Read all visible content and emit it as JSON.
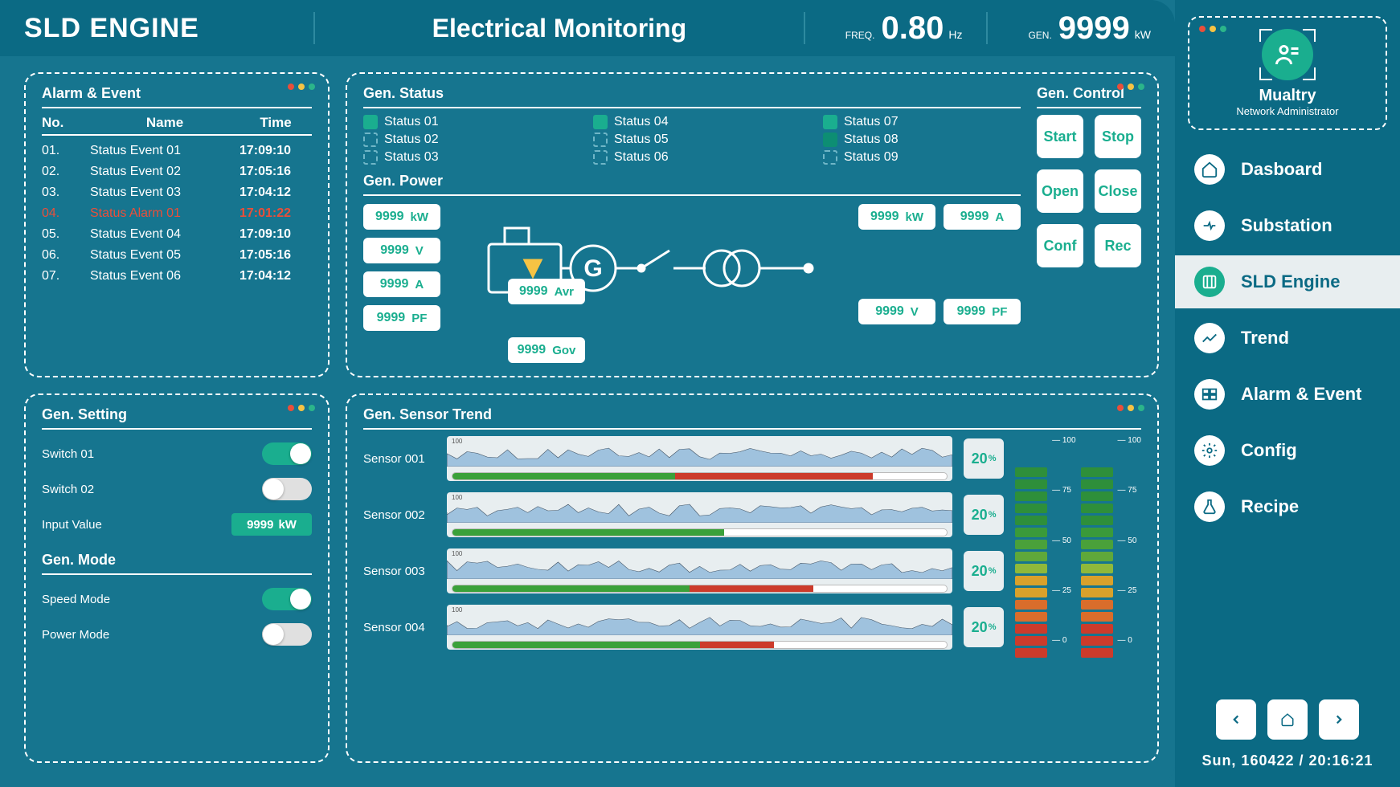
{
  "colors": {
    "bg_main": "#16758f",
    "bg_side": "#0b6a84",
    "accent": "#1aae8f",
    "white": "#ffffff",
    "alarm": "#e94f3a",
    "trend_bg": "#e8eef0",
    "trend_line": "#5b8fbf"
  },
  "header": {
    "brand": "SLD ENGINE",
    "title": "Electrical Monitoring",
    "freq": {
      "label": "FREQ.",
      "value": "0.80",
      "unit": "Hz"
    },
    "gen": {
      "label": "GEN.",
      "value": "9999",
      "unit": "kW"
    }
  },
  "alarm": {
    "title": "Alarm & Event",
    "columns": {
      "no": "No.",
      "name": "Name",
      "time": "Time"
    },
    "rows": [
      {
        "no": "01.",
        "name": "Status Event 01",
        "time": "17:09:10",
        "type": "event"
      },
      {
        "no": "02.",
        "name": "Status Event 02",
        "time": "17:05:16",
        "type": "event"
      },
      {
        "no": "03.",
        "name": "Status Event 03",
        "time": "17:04:12",
        "type": "event"
      },
      {
        "no": "04.",
        "name": "Status Alarm 01",
        "time": "17:01:22",
        "type": "alarm"
      },
      {
        "no": "05.",
        "name": "Status Event 04",
        "time": "17:09:10",
        "type": "event"
      },
      {
        "no": "06.",
        "name": "Status Event 05",
        "time": "17:05:16",
        "type": "event"
      },
      {
        "no": "07.",
        "name": "Status Event 06",
        "time": "17:04:12",
        "type": "event"
      }
    ]
  },
  "gen_status": {
    "title": "Gen. Status",
    "items": [
      {
        "label": "Status 01",
        "state": "on"
      },
      {
        "label": "Status 04",
        "state": "on"
      },
      {
        "label": "Status 07",
        "state": "on"
      },
      {
        "label": "Status 02",
        "state": "off"
      },
      {
        "label": "Status 05",
        "state": "off"
      },
      {
        "label": "Status 08",
        "state": "dim"
      },
      {
        "label": "Status 03",
        "state": "off"
      },
      {
        "label": "Status 06",
        "state": "off"
      },
      {
        "label": "Status 09",
        "state": "off"
      }
    ]
  },
  "gen_power": {
    "title": "Gen. Power",
    "left_boxes": [
      {
        "value": "9999",
        "unit": "kW"
      },
      {
        "value": "9999",
        "unit": "V"
      },
      {
        "value": "9999",
        "unit": "A"
      },
      {
        "value": "9999",
        "unit": "PF"
      }
    ],
    "mid_boxes": [
      {
        "value": "9999",
        "unit": "Avr"
      },
      {
        "value": "9999",
        "unit": "Gov"
      }
    ],
    "right_boxes": [
      {
        "value": "9999",
        "unit": "kW"
      },
      {
        "value": "9999",
        "unit": "A"
      },
      {
        "value": "9999",
        "unit": "V"
      },
      {
        "value": "9999",
        "unit": "PF"
      }
    ]
  },
  "gen_control": {
    "title": "Gen. Control",
    "buttons": [
      "Start",
      "Stop",
      "Open",
      "Close",
      "Conf",
      "Rec"
    ]
  },
  "gen_setting": {
    "title": "Gen. Setting",
    "switches": [
      {
        "label": "Switch 01",
        "on": true
      },
      {
        "label": "Switch 02",
        "on": false
      }
    ],
    "input": {
      "label": "Input Value",
      "value": "9999",
      "unit": "kW"
    }
  },
  "gen_mode": {
    "title": "Gen. Mode",
    "modes": [
      {
        "label": "Speed Mode",
        "on": true
      },
      {
        "label": "Power Mode",
        "on": false
      }
    ]
  },
  "sensor": {
    "title": "Gen. Sensor Trend",
    "axis_max": "100",
    "axis_min": "0",
    "rows": [
      {
        "name": "Sensor 001",
        "pct": "20",
        "bar_green": 45,
        "bar_red": 40
      },
      {
        "name": "Sensor 002",
        "pct": "20",
        "bar_green": 55,
        "bar_red": 0
      },
      {
        "name": "Sensor 003",
        "pct": "20",
        "bar_green": 48,
        "bar_red": 25
      },
      {
        "name": "Sensor 004",
        "pct": "20",
        "bar_green": 50,
        "bar_red": 15
      }
    ],
    "vu": {
      "labels": [
        "100",
        "75",
        "50",
        "25",
        "0"
      ],
      "segment_colors": [
        "#cc3b2b",
        "#cc3b2b",
        "#cc3b2b",
        "#d96d2b",
        "#d96d2b",
        "#d9a12b",
        "#d9a12b",
        "#8fb93a",
        "#5fa83a",
        "#4aa13a",
        "#3a9a3a",
        "#2e8f3a",
        "#2e8f3a",
        "#2e8f3a",
        "#2e8f3a",
        "#2e8f3a"
      ]
    }
  },
  "profile": {
    "name": "Mualtry",
    "role": "Network Administrator"
  },
  "nav": {
    "items": [
      {
        "label": "Dasboard",
        "icon": "home-icon",
        "active": false
      },
      {
        "label": "Substation",
        "icon": "sub-icon",
        "active": false
      },
      {
        "label": "SLD Engine",
        "icon": "sld-icon",
        "active": true
      },
      {
        "label": "Trend",
        "icon": "trend-icon",
        "active": false
      },
      {
        "label": "Alarm & Event",
        "icon": "alarm-icon",
        "active": false
      },
      {
        "label": "Config",
        "icon": "gear-icon",
        "active": false
      },
      {
        "label": "Recipe",
        "icon": "flask-icon",
        "active": false
      }
    ]
  },
  "datetime": "Sun, 160422 / 20:16:21"
}
